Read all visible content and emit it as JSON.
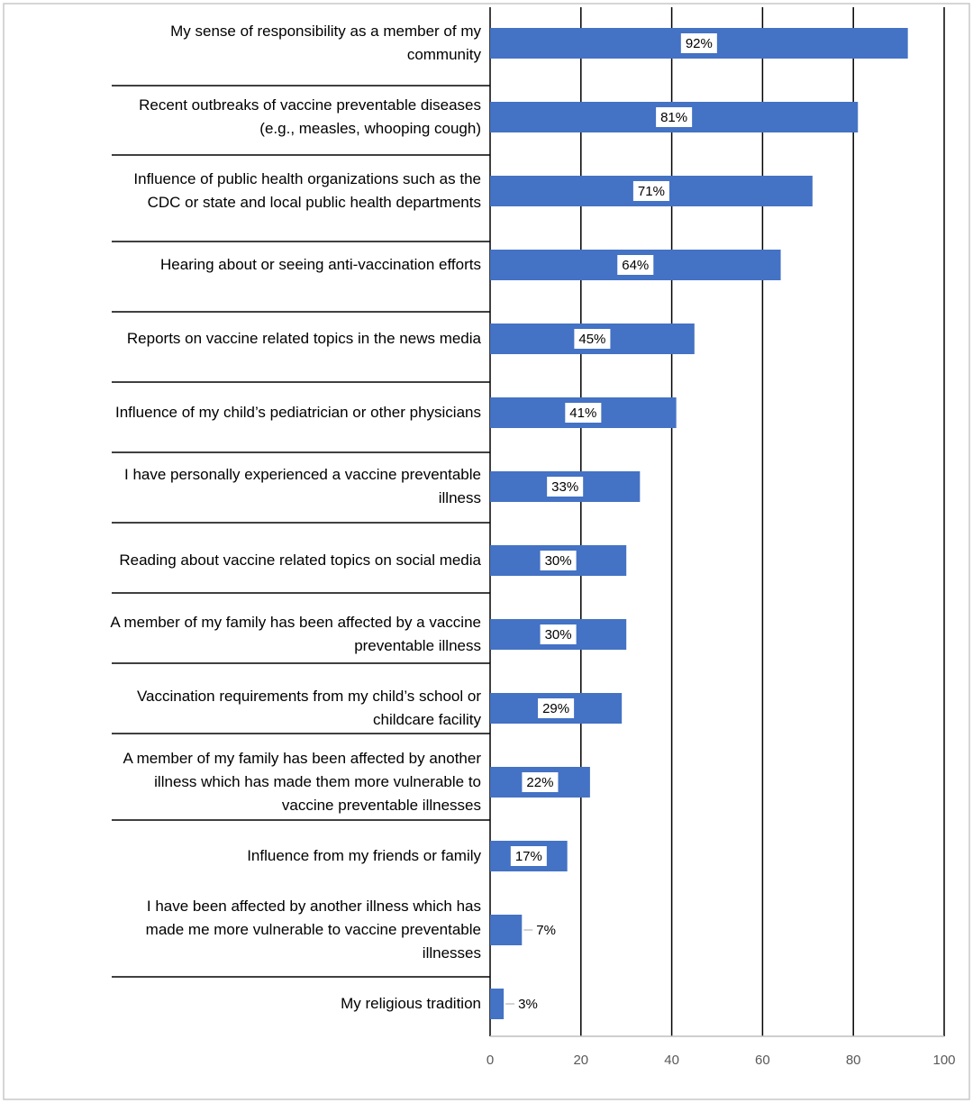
{
  "chart_data": {
    "type": "hbar",
    "categories": [
      "My sense of responsibility as a member of my community",
      "Recent outbreaks of vaccine preventable diseases (e.g., measles, whooping cough)",
      "Influence of public health organizations such as the CDC or state and local public health departments",
      "Hearing about or seeing anti-vaccination efforts",
      "Reports on vaccine related topics in the news media",
      "Influence of my child’s pediatrician or other physicians",
      "I have personally experienced a vaccine preventable illness",
      "Reading about vaccine related topics on social media",
      "A member of my family has been affected by a vaccine preventable illness",
      "Vaccination requirements from my child’s school or childcare facility",
      "A member of my family has been affected by another illness which has made them more vulnerable to vaccine preventable illnesses",
      "Influence from my friends or family",
      "I have been affected by another illness which has made me more vulnerable to vaccine preventable illnesses",
      "My religious tradition"
    ],
    "values": [
      92,
      81,
      71,
      64,
      45,
      41,
      33,
      30,
      30,
      29,
      22,
      17,
      7,
      3
    ],
    "value_labels": [
      "92%",
      "81%",
      "71%",
      "64%",
      "45%",
      "41%",
      "33%",
      "30%",
      "30%",
      "29%",
      "22%",
      "17%",
      "7%",
      "3%"
    ],
    "color": "#4472c4",
    "xlim": [
      0,
      100
    ],
    "xticks": [
      0,
      20,
      40,
      60,
      80,
      100
    ],
    "grid": true
  }
}
